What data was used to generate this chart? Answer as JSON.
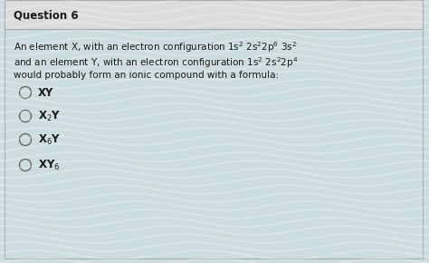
{
  "title": "Question 6",
  "bg_color": "#ccdde0",
  "header_bg": "#dcdcdc",
  "border_color": "#aaaaaa",
  "text_color": "#1a1a1a",
  "circle_color": "#666666",
  "title_fontsize": 8.5,
  "body_fontsize": 7.5,
  "option_fontsize": 8.5,
  "line1": "An element X, with an electron configuration 1s$^{2}$ 2s$^{2}$2p$^{6}$ 3s$^{2}$",
  "line2": "and an element Y, with an electron configuration 1s$^{2}$ 2s$^{2}$2p$^{4}$",
  "line3": "would probably form an ionic compound with a formula:",
  "option_texts": [
    "XY",
    "X$_2$Y",
    "X$_6$Y",
    "XY$_6$"
  ]
}
